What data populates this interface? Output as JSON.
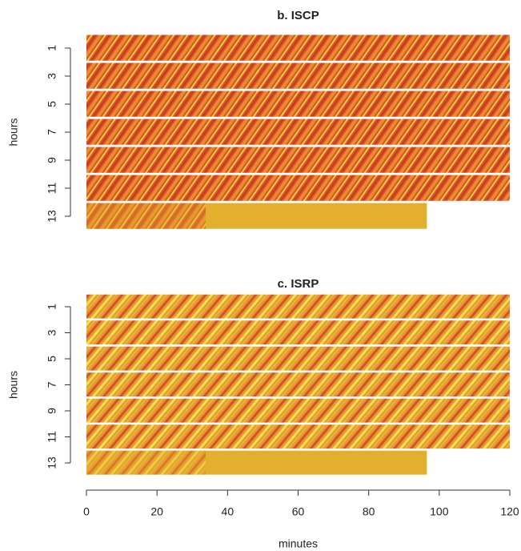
{
  "chart_data": [
    {
      "type": "heatmap",
      "title": "b. ISCP",
      "ylabel": "hours",
      "xlim": [
        0,
        120
      ],
      "ylim": [
        14,
        0
      ],
      "yticks": [
        1,
        3,
        5,
        7,
        9,
        11,
        13
      ],
      "strip_ends": [
        120,
        120,
        120,
        120,
        120,
        120,
        96.5
      ]
    },
    {
      "type": "heatmap",
      "title": "c. ISRP",
      "ylabel": "hours",
      "xlabel": "minutes",
      "xlim": [
        0,
        120
      ],
      "ylim": [
        14,
        0
      ],
      "yticks": [
        1,
        3,
        5,
        7,
        9,
        11,
        13
      ],
      "xticks": [
        0,
        20,
        40,
        60,
        80,
        100,
        120
      ],
      "strip_ends": [
        120,
        120,
        120,
        120,
        120,
        120,
        96.5
      ]
    }
  ]
}
